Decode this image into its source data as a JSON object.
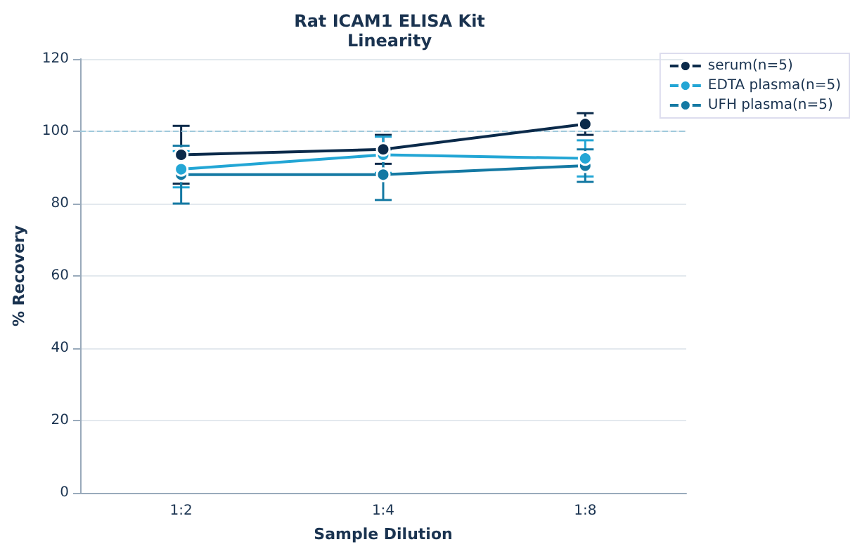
{
  "chart_data": {
    "type": "line",
    "title": "Rat ICAM1 ELISA Kit",
    "subtitle": "Linearity",
    "xlabel": "Sample Dilution",
    "ylabel": "% Recovery",
    "categories": [
      "1:2",
      "1:4",
      "1:8"
    ],
    "series": [
      {
        "name": "serum(n=5)",
        "color": "#0b2a4a",
        "values": [
          93.5,
          95,
          102
        ],
        "errors": [
          8,
          4,
          3
        ]
      },
      {
        "name": "EDTA plasma(n=5)",
        "color": "#23a6d5",
        "values": [
          89.5,
          93.5,
          92.5
        ],
        "errors": [
          5,
          5,
          5
        ]
      },
      {
        "name": "UFH plasma(n=5)",
        "color": "#1479a3",
        "values": [
          88,
          88,
          90.5
        ],
        "errors": [
          8,
          7,
          4.5
        ]
      }
    ],
    "ylim": [
      0,
      120
    ],
    "yticks": [
      0,
      20,
      40,
      60,
      80,
      100,
      120
    ],
    "grid": "y",
    "legend": "top right",
    "marker": "circle",
    "line_style": "solid",
    "ref_lines": [
      {
        "axis": "y",
        "value": 100,
        "label": null,
        "color": "#9fc9dc",
        "line_style": "dashed"
      }
    ]
  }
}
